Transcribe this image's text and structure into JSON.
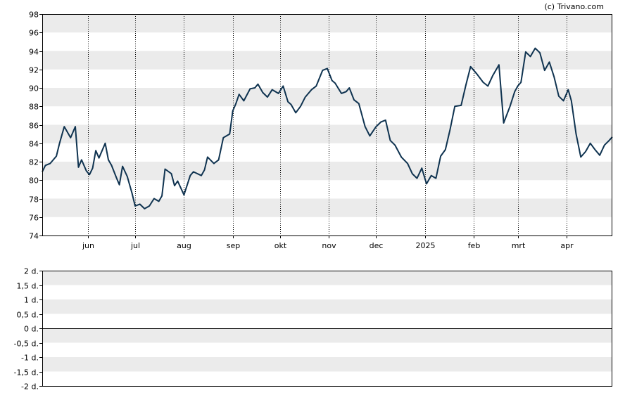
{
  "credit": "(c) Trivano.com",
  "colors": {
    "line": "#0f3350",
    "band": "#ebebeb",
    "frame": "#000000",
    "grid": "#000000"
  },
  "chart_data": [
    {
      "type": "line",
      "x_tick_labels": [
        "jun",
        "jul",
        "aug",
        "sep",
        "okt",
        "nov",
        "dec",
        "2025",
        "feb",
        "mrt",
        "apr"
      ],
      "x_tick_dates": [
        "2024-06-01",
        "2024-07-01",
        "2024-08-01",
        "2024-09-01",
        "2024-10-01",
        "2024-11-01",
        "2024-12-01",
        "2025-01-01",
        "2025-02-01",
        "2025-03-01",
        "2025-04-01"
      ],
      "x_range": [
        "2024-05-03",
        "2025-04-30"
      ],
      "y_tick_labels": [
        "74",
        "76",
        "78",
        "80",
        "82",
        "84",
        "86",
        "88",
        "90",
        "92",
        "94",
        "96",
        "98"
      ],
      "ylim": [
        74,
        98
      ],
      "y_step": 2,
      "grid": "vertical dotted lines at month ticks, alternating horizontal bands",
      "series": [
        {
          "x": [
            "2024-05-03",
            "2024-05-05",
            "2024-05-08",
            "2024-05-12",
            "2024-05-14",
            "2024-05-17",
            "2024-05-21",
            "2024-05-24",
            "2024-05-26",
            "2024-05-28",
            "2024-05-31",
            "2024-06-02",
            "2024-06-04",
            "2024-06-06",
            "2024-06-08",
            "2024-06-12",
            "2024-06-14",
            "2024-06-16",
            "2024-06-19",
            "2024-06-21",
            "2024-06-23",
            "2024-06-26",
            "2024-06-29",
            "2024-07-01",
            "2024-07-04",
            "2024-07-07",
            "2024-07-10",
            "2024-07-13",
            "2024-07-16",
            "2024-07-18",
            "2024-07-20",
            "2024-07-24",
            "2024-07-26",
            "2024-07-28",
            "2024-08-01",
            "2024-08-05",
            "2024-08-07",
            "2024-08-12",
            "2024-08-14",
            "2024-08-16",
            "2024-08-20",
            "2024-08-23",
            "2024-08-26",
            "2024-08-30",
            "2024-09-01",
            "2024-09-03",
            "2024-09-05",
            "2024-09-08",
            "2024-09-12",
            "2024-09-15",
            "2024-09-17",
            "2024-09-20",
            "2024-09-23",
            "2024-09-26",
            "2024-09-30",
            "2024-10-03",
            "2024-10-06",
            "2024-10-08",
            "2024-10-11",
            "2024-10-14",
            "2024-10-17",
            "2024-10-21",
            "2024-10-24",
            "2024-10-28",
            "2024-10-31",
            "2024-11-03",
            "2024-11-05",
            "2024-11-09",
            "2024-11-12",
            "2024-11-14",
            "2024-11-17",
            "2024-11-20",
            "2024-11-24",
            "2024-11-27",
            "2024-12-01",
            "2024-12-04",
            "2024-12-07",
            "2024-12-10",
            "2024-12-13",
            "2024-12-17",
            "2024-12-21",
            "2024-12-24",
            "2024-12-27",
            "2024-12-30",
            "2025-01-02",
            "2025-01-05",
            "2025-01-08",
            "2025-01-11",
            "2025-01-14",
            "2025-01-17",
            "2025-01-20",
            "2025-01-24",
            "2025-01-27",
            "2025-01-30",
            "2025-02-03",
            "2025-02-07",
            "2025-02-10",
            "2025-02-13",
            "2025-02-17",
            "2025-02-20",
            "2025-02-24",
            "2025-02-27",
            "2025-03-01",
            "2025-03-03",
            "2025-03-06",
            "2025-03-09",
            "2025-03-12",
            "2025-03-15",
            "2025-03-18",
            "2025-03-21",
            "2025-03-24",
            "2025-03-27",
            "2025-03-30",
            "2025-04-02",
            "2025-04-04",
            "2025-04-07",
            "2025-04-10",
            "2025-04-13",
            "2025-04-16",
            "2025-04-19",
            "2025-04-22",
            "2025-04-25",
            "2025-04-28",
            "2025-04-30"
          ],
          "values": [
            80.9,
            81.6,
            81.8,
            82.6,
            84.0,
            85.8,
            84.6,
            85.8,
            81.4,
            82.2,
            81.0,
            80.6,
            81.3,
            83.2,
            82.4,
            84.0,
            82.2,
            81.6,
            80.3,
            79.5,
            81.5,
            80.4,
            78.6,
            77.2,
            77.4,
            76.9,
            77.2,
            78.0,
            77.7,
            78.3,
            81.2,
            80.7,
            79.4,
            79.9,
            78.4,
            80.5,
            80.9,
            80.5,
            81.1,
            82.5,
            81.8,
            82.2,
            84.6,
            85.0,
            87.5,
            88.3,
            89.3,
            88.6,
            89.9,
            90.0,
            90.4,
            89.5,
            89.0,
            89.8,
            89.4,
            90.2,
            88.5,
            88.2,
            87.3,
            88.0,
            89.0,
            89.8,
            90.2,
            91.9,
            92.1,
            90.8,
            90.5,
            89.4,
            89.6,
            90.0,
            88.7,
            88.3,
            85.8,
            84.8,
            85.8,
            86.3,
            86.5,
            84.3,
            83.8,
            82.5,
            81.8,
            80.7,
            80.2,
            81.3,
            79.6,
            80.5,
            80.2,
            82.6,
            83.3,
            85.5,
            88.0,
            88.1,
            90.3,
            92.3,
            91.5,
            90.6,
            90.2,
            91.3,
            92.5,
            86.2,
            88.0,
            89.6,
            90.2,
            90.6,
            93.9,
            93.4,
            94.3,
            93.8,
            91.9,
            92.8,
            91.2,
            89.1,
            88.6,
            89.8,
            88.6,
            85.0,
            82.5,
            83.1,
            84.0,
            83.3,
            82.7,
            83.8,
            84.3,
            84.7
          ]
        }
      ]
    },
    {
      "type": "line",
      "y_tick_labels": [
        "2 d.",
        "1,5 d.",
        "1 d.",
        "0,5 d.",
        "0 d.",
        "-0,5 d.",
        "-1 d.",
        "-1,5 d.",
        "-2 d."
      ],
      "ylim": [
        -2,
        2
      ],
      "y_step": 0.5,
      "series": []
    }
  ]
}
